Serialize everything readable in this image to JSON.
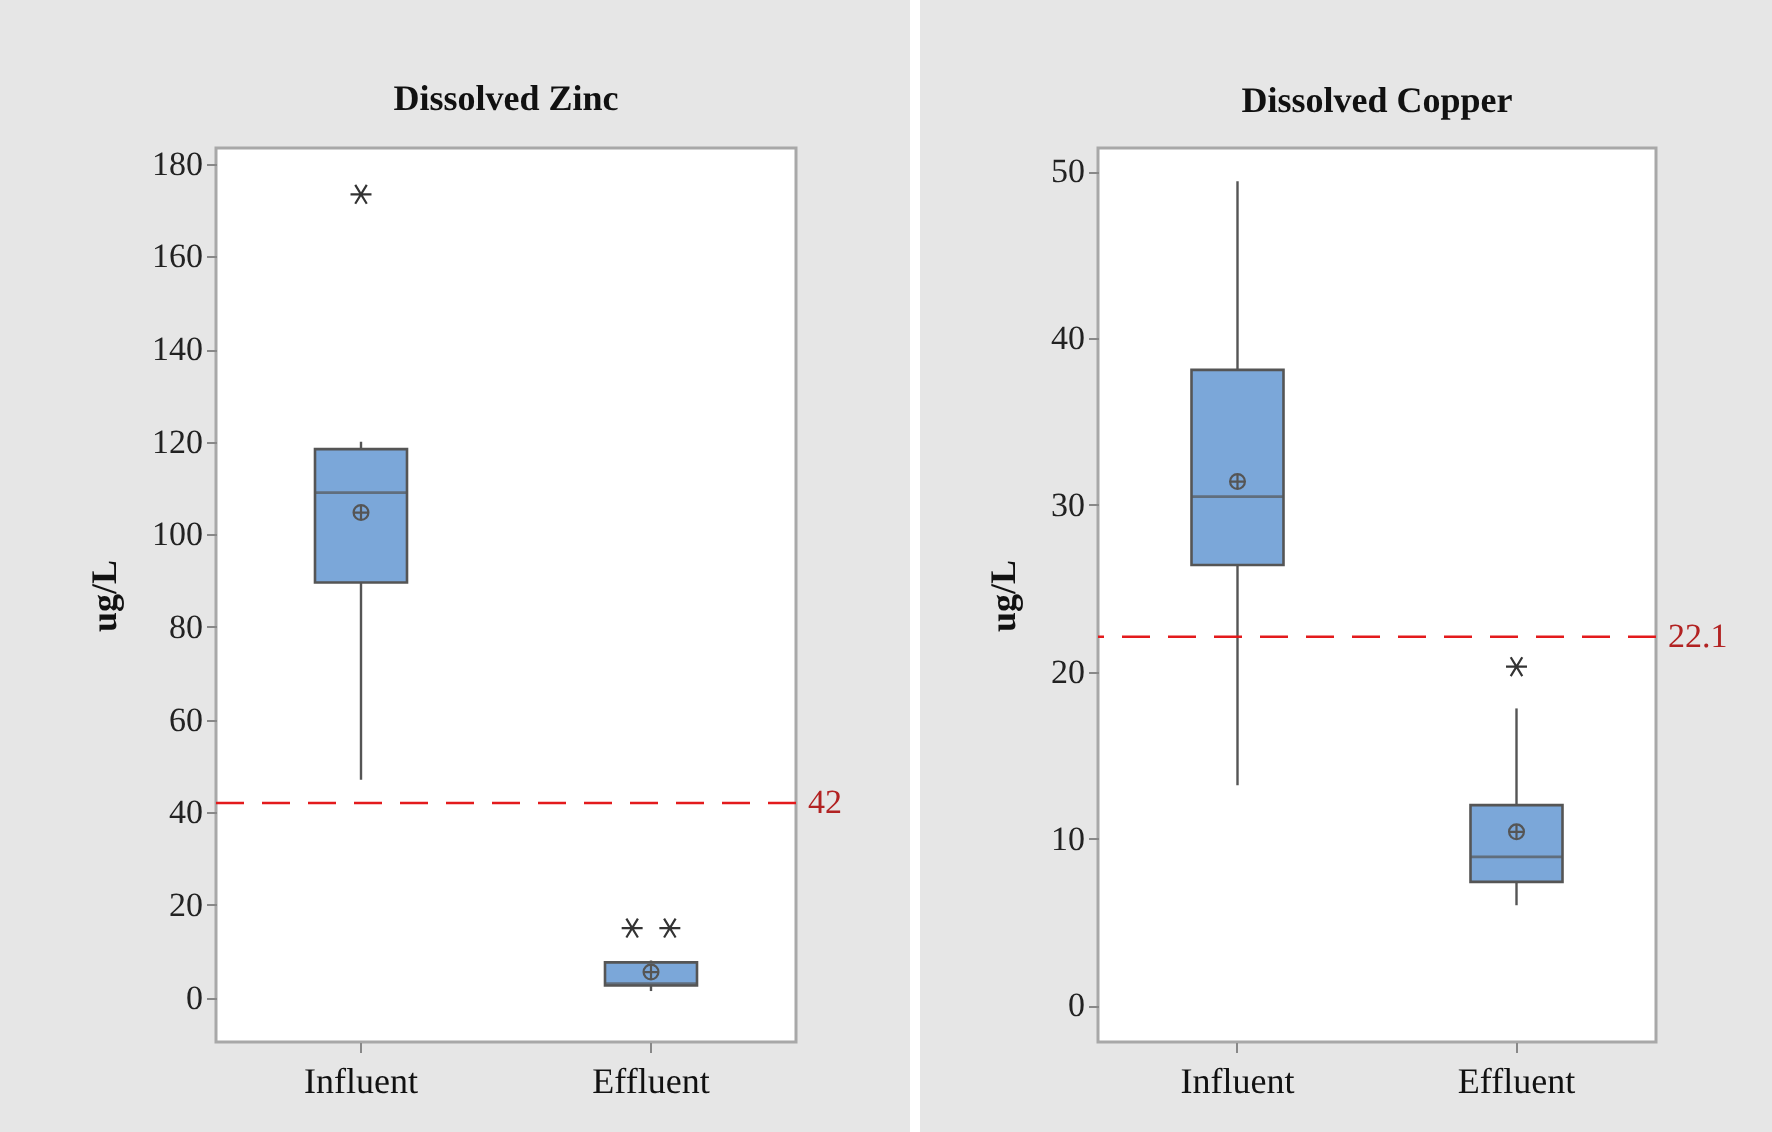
{
  "chart_data": [
    {
      "type": "box",
      "title": "Dissolved Zinc",
      "ylabel": "ug/L",
      "categories": [
        "Influent",
        "Effluent"
      ],
      "ylim": [
        -9.6,
        183.4
      ],
      "yticks": [
        0,
        20,
        40,
        60,
        80,
        100,
        120,
        140,
        160,
        180
      ],
      "grid": false,
      "series": [
        {
          "color": "#7ba7d9",
          "boxes": [
            {
              "low": 47,
              "q1": 89.6,
              "median": 109,
              "q3": 118.4,
              "high": 120,
              "mean": 104.7,
              "outliers": [
                173.4
              ]
            },
            {
              "low": 1.4,
              "q1": 2.6,
              "median": 3,
              "q3": 7.6,
              "high": 8,
              "mean": 5.5,
              "outliers": [
                15,
                15
              ]
            }
          ]
        }
      ],
      "ref_lines": [
        {
          "axis": "y",
          "value": 42,
          "label": "42",
          "color": "#e31a1c",
          "line_style": "dashed"
        }
      ]
    },
    {
      "type": "box",
      "title": "Dissolved Copper",
      "ylabel": "ug/L",
      "categories": [
        "Influent",
        "Effluent"
      ],
      "ylim": [
        -2.2,
        51.4
      ],
      "yticks": [
        0,
        10,
        20,
        30,
        40,
        50
      ],
      "grid": false,
      "series": [
        {
          "color": "#7ba7d9",
          "boxes": [
            {
              "low": 13.2,
              "q1": 26.4,
              "median": 30.5,
              "q3": 38.1,
              "high": 49.4,
              "mean": 31.4
            },
            {
              "low": 6,
              "q1": 7.4,
              "median": 8.9,
              "q3": 12,
              "high": 17.8,
              "mean": 10.4,
              "outliers": [
                20.3
              ]
            }
          ]
        }
      ],
      "ref_lines": [
        {
          "axis": "y",
          "value": 22.1,
          "label": "22.1",
          "color": "#e31a1c",
          "line_style": "dashed"
        }
      ]
    }
  ]
}
